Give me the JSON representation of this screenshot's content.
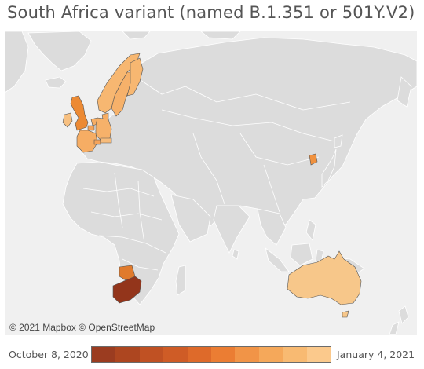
{
  "title": "South Africa variant (named B.1.351 or 501Y.V2)",
  "map": {
    "attribution": "© 2021 Mapbox © OpenStreetMap",
    "ocean_color": "#f0f0f0",
    "land_color": "#dcdcdc",
    "border_color": "#ffffff",
    "highlighted_regions": [
      {
        "name": "South Africa",
        "color": "#93351b"
      },
      {
        "name": "Botswana",
        "color": "#e07a2c"
      },
      {
        "name": "United Kingdom",
        "color": "#ec8a34"
      },
      {
        "name": "Ireland",
        "color": "#f7c081"
      },
      {
        "name": "France",
        "color": "#f6ad64"
      },
      {
        "name": "Netherlands",
        "color": "#f6ad64"
      },
      {
        "name": "Belgium",
        "color": "#f4a35a"
      },
      {
        "name": "Germany",
        "color": "#f6b16a"
      },
      {
        "name": "Switzerland",
        "color": "#f4a35a"
      },
      {
        "name": "Austria",
        "color": "#f7bb7a"
      },
      {
        "name": "Norway",
        "color": "#f7b771"
      },
      {
        "name": "Sweden",
        "color": "#f6b16a"
      },
      {
        "name": "Finland",
        "color": "#f7b771"
      },
      {
        "name": "Denmark",
        "color": "#f6ad64"
      },
      {
        "name": "South Korea",
        "color": "#f0913e"
      },
      {
        "name": "Australia",
        "color": "#f7c78a"
      }
    ]
  },
  "legend": {
    "start_label": "October 8, 2020",
    "end_label": "January 4, 2021",
    "colors": [
      "#9b3c20",
      "#ad4620",
      "#c05123",
      "#cf5c26",
      "#de6a2a",
      "#eb7d33",
      "#f19447",
      "#f5a85a",
      "#f8ba72",
      "#fbc98c"
    ]
  }
}
